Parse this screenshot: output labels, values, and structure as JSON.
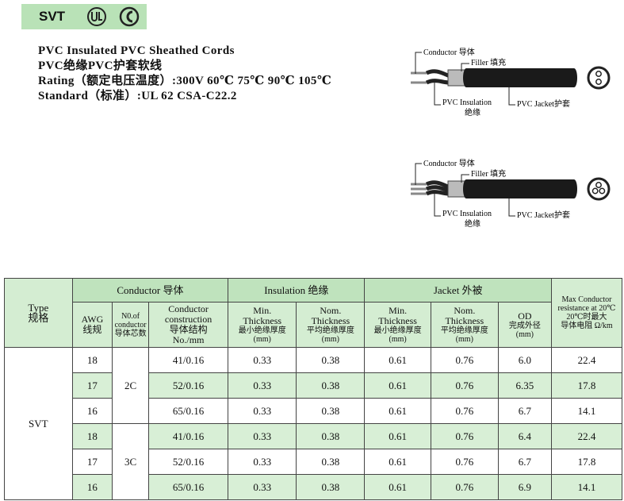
{
  "badge": {
    "text": "SVT"
  },
  "titles": [
    "PVC Insulated PVC Sheathed Cords",
    "PVC绝缘PVC护套软线",
    "Rating（额定电压温度）:300V  60℃ 75℃ 90℃ 105℃",
    "Standard（标准）:UL 62   CSA-C22.2"
  ],
  "diagrams": [
    {
      "conductor": "Conductor 导体",
      "filler": "Filler 填充",
      "insulation": "PVC Insulation",
      "insulation_cn": "绝缘",
      "jacket": "PVC Jacket护套"
    },
    {
      "conductor": "Conductor 导体",
      "filler": "Filler 填充",
      "insulation": "PVC Insulation",
      "insulation_cn": "绝缘",
      "jacket": "PVC Jacket护套"
    }
  ],
  "table": {
    "header": {
      "type": [
        "Type",
        "规格"
      ],
      "conductor": "Conductor 导体",
      "insulation": "Insulation 绝缘",
      "jacket": "Jacket 外被",
      "resistance": [
        "Max Conductor",
        "resistance at 20℃",
        "20℃时最大",
        "导体电阻 Ω/km"
      ],
      "awg": [
        "AWG",
        "线规"
      ],
      "count": [
        "N0.of",
        "conductor",
        "导体芯数"
      ],
      "construction": [
        "Conductor",
        "construction",
        "导体结构",
        "No./mm"
      ],
      "ins_min": [
        "Min.",
        "Thickness",
        "最小绝缘厚度",
        "(mm)"
      ],
      "ins_nom": [
        "Nom.",
        "Thickness",
        "平均绝缘厚度",
        "(mm)"
      ],
      "jkt_min": [
        "Min.",
        "Thickness",
        "最小绝缘厚度",
        "(mm)"
      ],
      "jkt_nom": [
        "Nom.",
        "Thickness",
        "平均绝缘厚度",
        "(mm)"
      ],
      "od": [
        "OD",
        "完成外径",
        "(mm)"
      ]
    },
    "type": "SVT",
    "groups": [
      {
        "count": "2C",
        "rows": [
          0,
          1,
          2
        ]
      },
      {
        "count": "3C",
        "rows": [
          3,
          4,
          5
        ]
      }
    ],
    "rows": [
      [
        "18",
        "41/0.16",
        "0.33",
        "0.38",
        "0.61",
        "0.76",
        "6.0",
        "22.4"
      ],
      [
        "17",
        "52/0.16",
        "0.33",
        "0.38",
        "0.61",
        "0.76",
        "6.35",
        "17.8"
      ],
      [
        "16",
        "65/0.16",
        "0.33",
        "0.38",
        "0.61",
        "0.76",
        "6.7",
        "14.1"
      ],
      [
        "18",
        "41/0.16",
        "0.33",
        "0.38",
        "0.61",
        "0.76",
        "6.4",
        "22.4"
      ],
      [
        "17",
        "52/0.16",
        "0.33",
        "0.38",
        "0.61",
        "0.76",
        "6.7",
        "17.8"
      ],
      [
        "16",
        "65/0.16",
        "0.33",
        "0.38",
        "0.61",
        "0.76",
        "6.9",
        "14.1"
      ]
    ]
  }
}
